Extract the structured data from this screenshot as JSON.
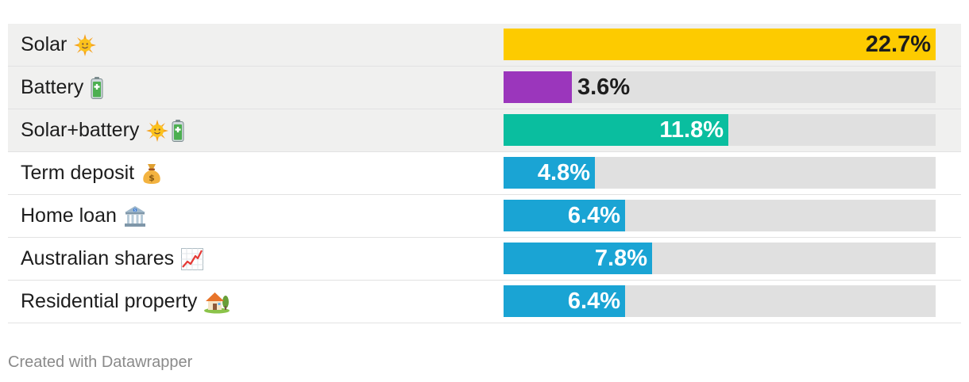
{
  "chart_data": {
    "type": "bar",
    "orientation": "horizontal",
    "xlim": [
      0,
      22.7
    ],
    "categories": [
      "Solar",
      "Battery",
      "Solar+battery",
      "Term deposit",
      "Home loan",
      "Australian shares",
      "Residential property"
    ],
    "values": [
      22.7,
      3.6,
      11.8,
      4.8,
      6.4,
      7.8,
      6.4
    ],
    "value_labels": [
      "22.7%",
      "3.6%",
      "11.8%",
      "4.8%",
      "6.4%",
      "7.8%",
      "6.4%"
    ],
    "icons": [
      [
        "sun-icon"
      ],
      [
        "battery-icon"
      ],
      [
        "sun-icon",
        "battery-icon"
      ],
      [
        "money-bag-icon"
      ],
      [
        "bank-icon"
      ],
      [
        "chart-increasing-icon"
      ],
      [
        "house-icon"
      ]
    ],
    "colors": [
      "#fdcb00",
      "#9b36bc",
      "#0abe9f",
      "#1aa4d4",
      "#1aa4d4",
      "#1aa4d4",
      "#1aa4d4"
    ],
    "highlighted": [
      true,
      true,
      true,
      false,
      false,
      false,
      false
    ],
    "track_color": "#e0e0e0",
    "grid": false
  },
  "footer": {
    "credit": "Created with Datawrapper"
  }
}
